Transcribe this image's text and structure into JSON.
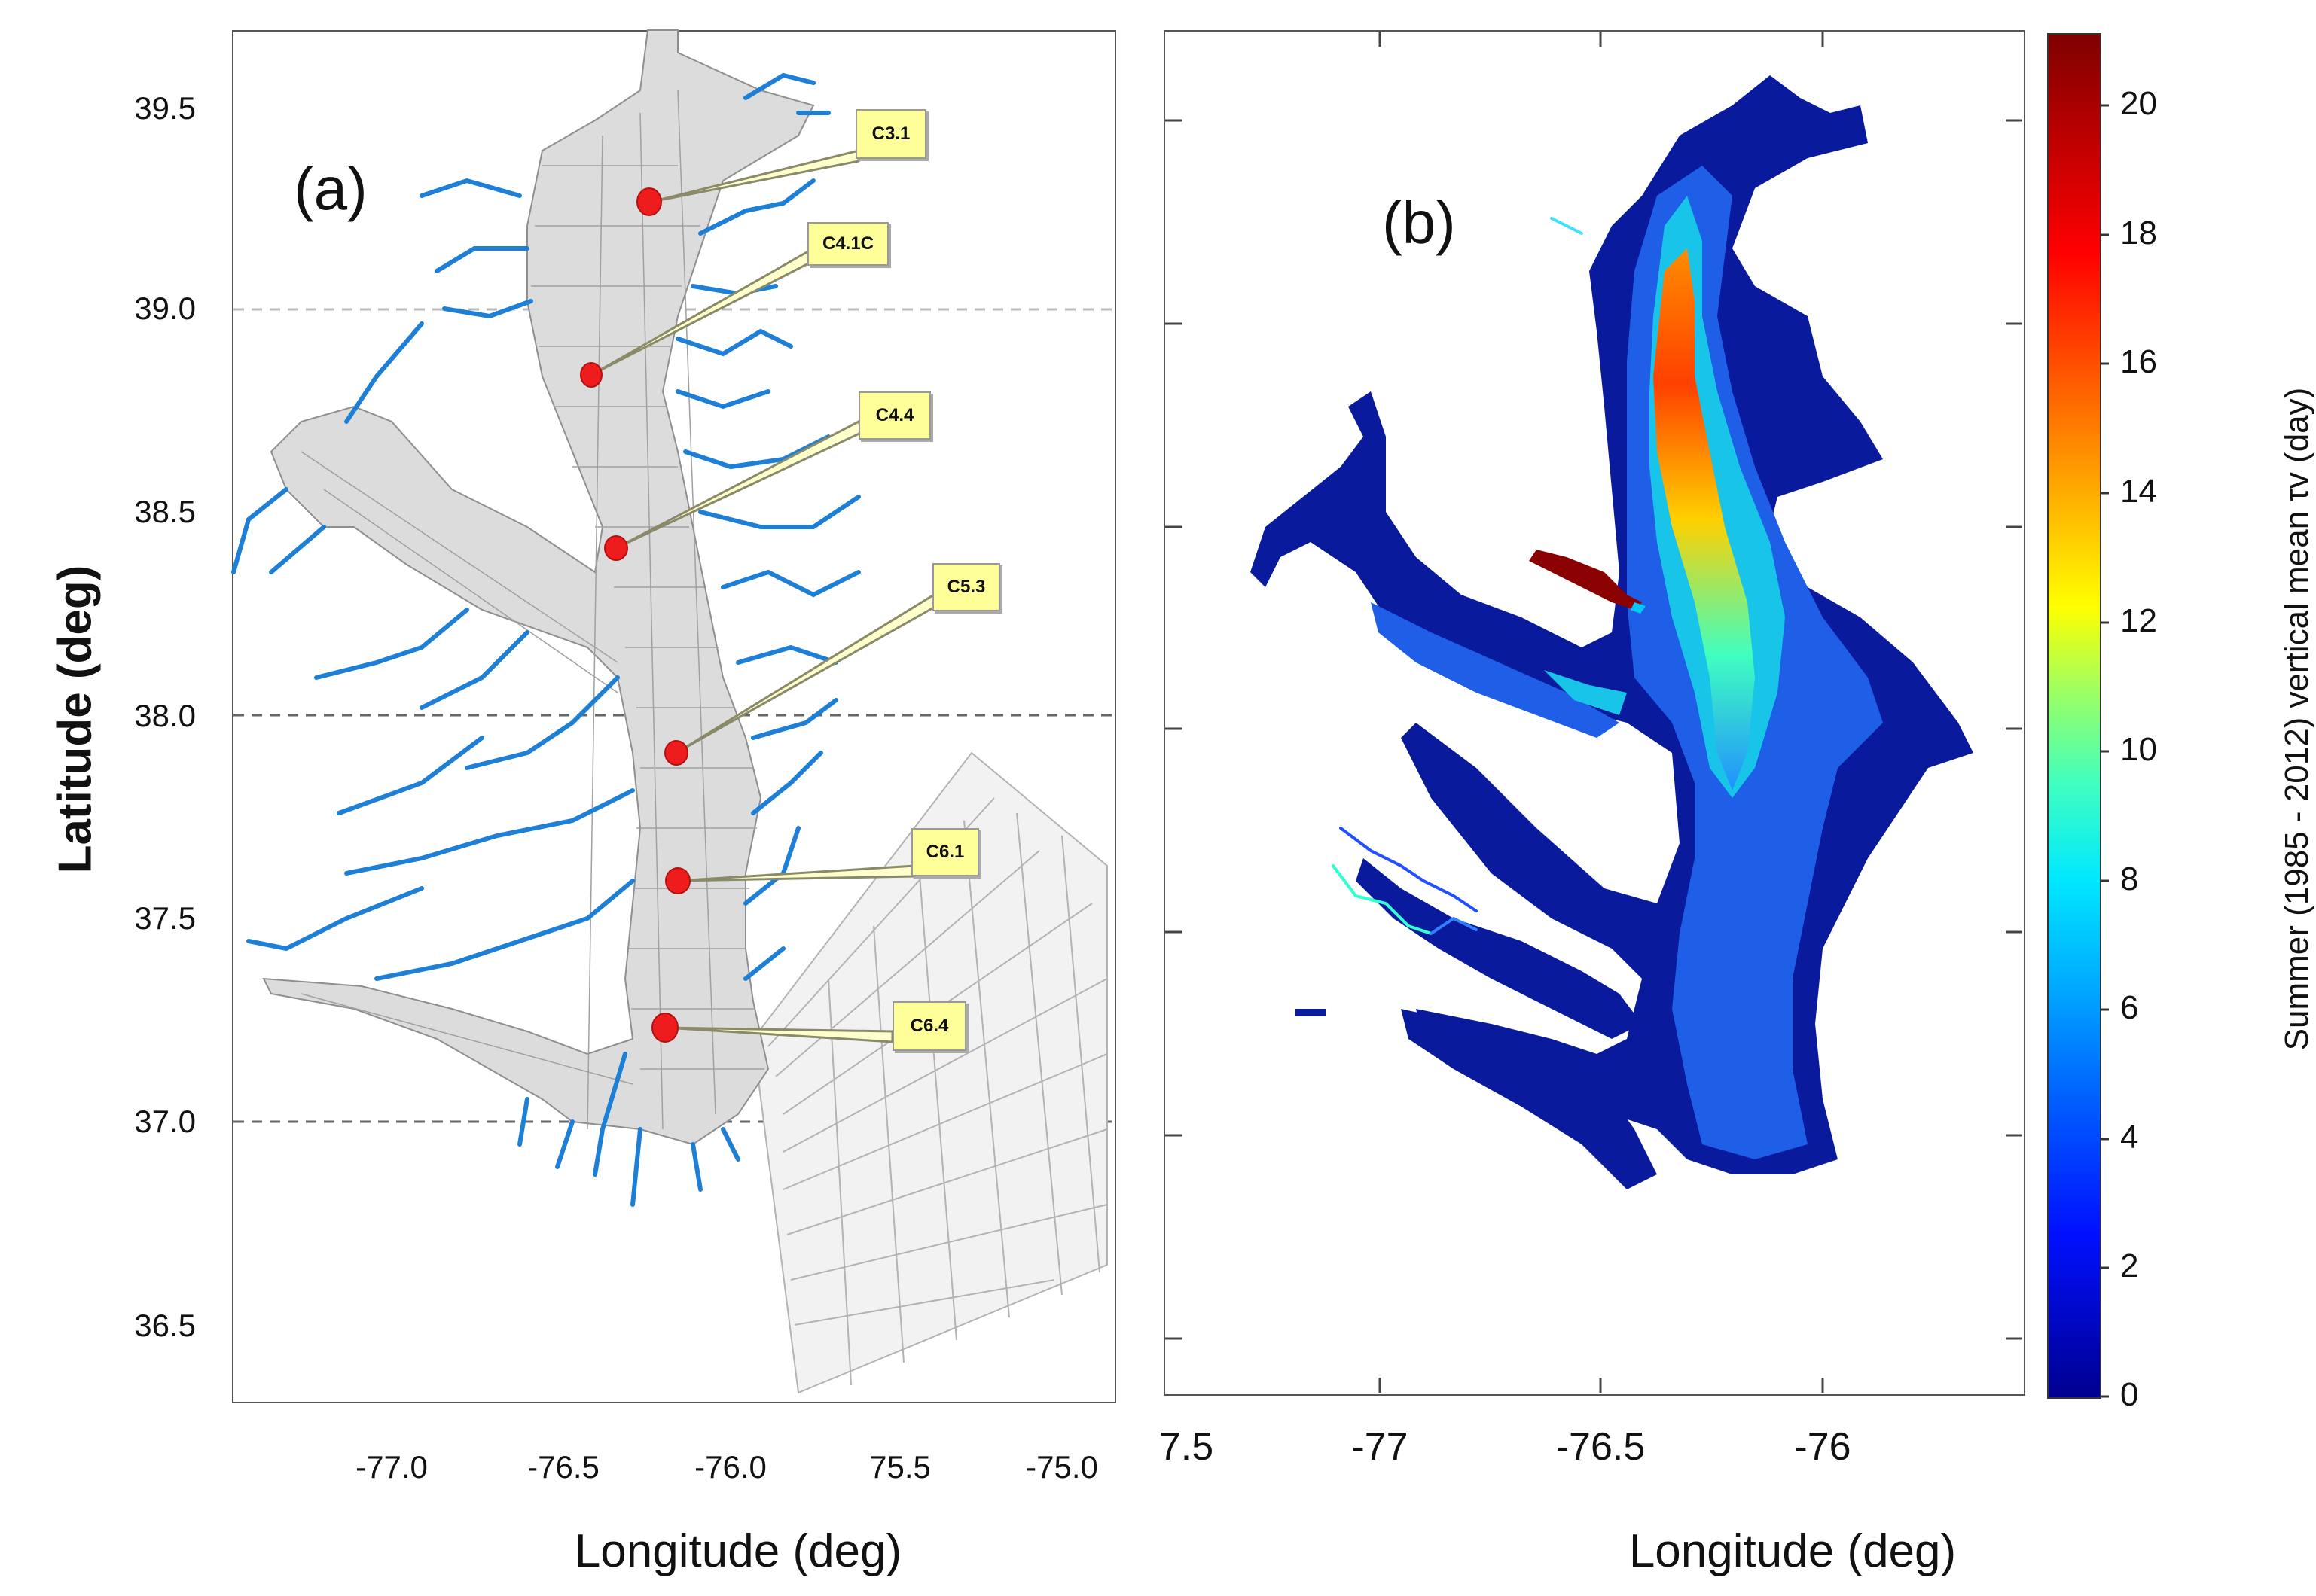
{
  "panel_a": {
    "label": "(a)",
    "y_ticks": [
      "39.5",
      "39.0",
      "38.5",
      "38.0",
      "37.5",
      "37.0",
      "36.5"
    ],
    "x_ticks": [
      "-77.0",
      "-76.5",
      "-76.0",
      "75.5",
      "-75.0"
    ],
    "ylabel": "Latitude (deg)",
    "xlabel": "Longitude (deg)",
    "stations": [
      "C3.1",
      "C4.1C",
      "C4.4",
      "C5.3",
      "C6.1",
      "C6.4"
    ],
    "colors": {
      "grid": "#9a9a9a",
      "rivers": "#1e7fd6",
      "station": "#ee1c1c",
      "callout": "#ffff99"
    }
  },
  "panel_b": {
    "label": "(b)",
    "x_ticks": [
      "7.5",
      "-77",
      "-76.5",
      "-76"
    ],
    "xlabel": "Longitude (deg)",
    "colorbar": {
      "label": "Summer (1985 - 2012) vertical mean τv (day)",
      "ticks": [
        "20",
        "18",
        "16",
        "14",
        "12",
        "10",
        "8",
        "6",
        "4",
        "2",
        "0"
      ],
      "min": 0,
      "max": 21,
      "colormap": "jet"
    }
  }
}
